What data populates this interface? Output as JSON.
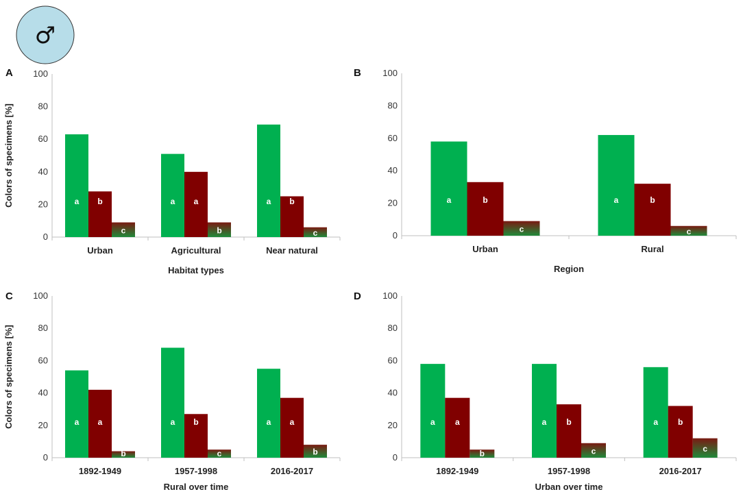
{
  "symbol": "♂",
  "colors": {
    "green": "#00B050",
    "red": "#800000",
    "dark_top": "#7a1a12",
    "dark_bottom": "#1f8a3a",
    "symbol_fill": "#b7dde9"
  },
  "chart_data": [
    {
      "type": "bar",
      "panel": "A",
      "ylabel": "Colors of specimens [%]",
      "xlabel": "Habitat types",
      "categories": [
        "Urban",
        "Agricultural",
        "Near natural"
      ],
      "ylim": [
        0,
        100
      ],
      "yticks": [
        0,
        20,
        40,
        60,
        80,
        100
      ],
      "series": [
        {
          "name": "green",
          "values": [
            63,
            51,
            69
          ],
          "labels": [
            "a",
            "a",
            "a"
          ]
        },
        {
          "name": "red",
          "values": [
            28,
            40,
            25
          ],
          "labels": [
            "b",
            "a",
            "b"
          ]
        },
        {
          "name": "dark",
          "values": [
            9,
            9,
            6
          ],
          "labels": [
            "c",
            "b",
            "c"
          ]
        }
      ]
    },
    {
      "type": "bar",
      "panel": "B",
      "ylabel": "",
      "xlabel": "Region",
      "categories": [
        "Urban",
        "Rural"
      ],
      "ylim": [
        0,
        100
      ],
      "yticks": [
        0,
        20,
        40,
        60,
        80,
        100
      ],
      "series": [
        {
          "name": "green",
          "values": [
            58,
            62
          ],
          "labels": [
            "a",
            "a"
          ]
        },
        {
          "name": "red",
          "values": [
            33,
            32
          ],
          "labels": [
            "b",
            "b"
          ]
        },
        {
          "name": "dark",
          "values": [
            9,
            6
          ],
          "labels": [
            "c",
            "c"
          ]
        }
      ]
    },
    {
      "type": "bar",
      "panel": "C",
      "ylabel": "Colors of specimens [%]",
      "xlabel": "Rural over time",
      "categories": [
        "1892-1949",
        "1957-1998",
        "2016-2017"
      ],
      "ylim": [
        0,
        100
      ],
      "yticks": [
        0,
        20,
        40,
        60,
        80,
        100
      ],
      "series": [
        {
          "name": "green",
          "values": [
            54,
            68,
            55
          ],
          "labels": [
            "a",
            "a",
            "a"
          ]
        },
        {
          "name": "red",
          "values": [
            42,
            27,
            37
          ],
          "labels": [
            "a",
            "b",
            "a"
          ]
        },
        {
          "name": "dark",
          "values": [
            4,
            5,
            8
          ],
          "labels": [
            "b",
            "c",
            "b"
          ]
        }
      ]
    },
    {
      "type": "bar",
      "panel": "D",
      "ylabel": "",
      "xlabel": "Urban over time",
      "categories": [
        "1892-1949",
        "1957-1998",
        "2016-2017"
      ],
      "ylim": [
        0,
        100
      ],
      "yticks": [
        0,
        20,
        40,
        60,
        80,
        100
      ],
      "series": [
        {
          "name": "green",
          "values": [
            58,
            58,
            56
          ],
          "labels": [
            "a",
            "a",
            "a"
          ]
        },
        {
          "name": "red",
          "values": [
            37,
            33,
            32
          ],
          "labels": [
            "a",
            "b",
            "b"
          ]
        },
        {
          "name": "dark",
          "values": [
            5,
            9,
            12
          ],
          "labels": [
            "b",
            "c",
            "c"
          ]
        }
      ]
    }
  ]
}
